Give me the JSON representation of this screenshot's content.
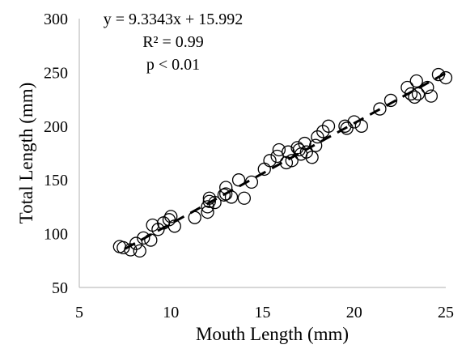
{
  "chart_data": {
    "type": "scatter",
    "title": "",
    "xlabel": "Mouth Length (mm)",
    "ylabel": "Total Length (mm)",
    "xlim": [
      5,
      25
    ],
    "ylim": [
      50,
      300
    ],
    "xticks": [
      "5",
      "10",
      "15",
      "20",
      "25"
    ],
    "yticks": [
      "50",
      "100",
      "150",
      "200",
      "250",
      "300"
    ],
    "grid": false,
    "legend": "none",
    "annotations": [
      "y = 9.3343x + 15.992",
      "R² = 0.99",
      "p < 0.01"
    ],
    "trendline": {
      "slope": 9.3343,
      "intercept": 15.992,
      "x_range": [
        7.5,
        25
      ],
      "style": "dashed"
    },
    "points": [
      [
        7.2,
        88
      ],
      [
        7.4,
        87
      ],
      [
        7.8,
        85
      ],
      [
        8.1,
        91
      ],
      [
        8.3,
        84
      ],
      [
        8.5,
        96
      ],
      [
        8.9,
        94
      ],
      [
        9.0,
        108
      ],
      [
        9.3,
        104
      ],
      [
        9.6,
        110
      ],
      [
        9.9,
        113
      ],
      [
        10.0,
        116
      ],
      [
        10.2,
        107
      ],
      [
        11.3,
        115
      ],
      [
        12.0,
        120
      ],
      [
        12.0,
        125
      ],
      [
        12.1,
        130
      ],
      [
        12.1,
        133
      ],
      [
        12.4,
        129
      ],
      [
        12.9,
        136
      ],
      [
        13.0,
        137
      ],
      [
        13.0,
        143
      ],
      [
        13.3,
        134
      ],
      [
        13.7,
        150
      ],
      [
        14.0,
        133
      ],
      [
        14.4,
        148
      ],
      [
        15.1,
        160
      ],
      [
        15.4,
        168
      ],
      [
        15.8,
        172
      ],
      [
        15.9,
        178
      ],
      [
        16.3,
        166
      ],
      [
        16.4,
        176
      ],
      [
        16.6,
        168
      ],
      [
        16.9,
        180
      ],
      [
        17.0,
        178
      ],
      [
        17.1,
        174
      ],
      [
        17.3,
        184
      ],
      [
        17.4,
        176
      ],
      [
        17.7,
        171
      ],
      [
        17.9,
        182
      ],
      [
        18.0,
        190
      ],
      [
        18.3,
        195
      ],
      [
        18.6,
        200
      ],
      [
        19.5,
        200
      ],
      [
        19.6,
        198
      ],
      [
        20.0,
        204
      ],
      [
        20.4,
        200
      ],
      [
        21.4,
        216
      ],
      [
        22.0,
        224
      ],
      [
        22.9,
        236
      ],
      [
        23.1,
        230
      ],
      [
        23.3,
        227
      ],
      [
        23.4,
        242
      ],
      [
        23.5,
        230
      ],
      [
        24.0,
        236
      ],
      [
        24.2,
        228
      ],
      [
        24.6,
        248
      ],
      [
        25.0,
        245
      ]
    ]
  }
}
